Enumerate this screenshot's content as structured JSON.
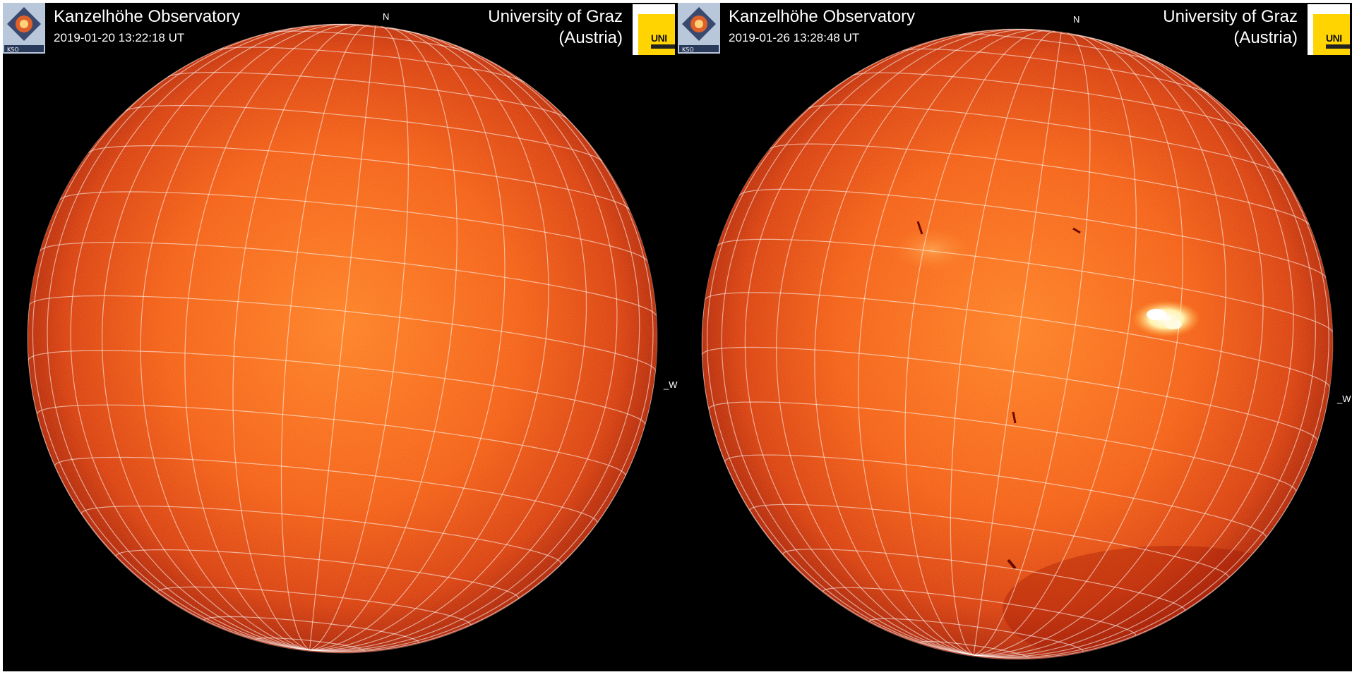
{
  "panels": [
    {
      "observatory": "Kanzelhöhe Observatory",
      "timestamp": "2019-01-20 13:22:18 UT",
      "university": "University of Graz",
      "country": "(Austria)",
      "north_label": "N",
      "west_label": "W",
      "logo_text": "UNI"
    },
    {
      "observatory": "Kanzelhöhe Observatory",
      "timestamp": "2019-01-26 13:28:48 UT",
      "university": "University of Graz",
      "country": "(Austria)",
      "north_label": "N",
      "west_label": "W",
      "logo_text": "UNI"
    }
  ],
  "colors": {
    "background": "#000000",
    "disk_center": "#ff7a1e",
    "disk_limb": "#a81a02",
    "grid": "#ffffff",
    "plage": "#fff3b0"
  },
  "icons": [
    "kso-logo-icon",
    "uni-graz-logo-icon"
  ]
}
